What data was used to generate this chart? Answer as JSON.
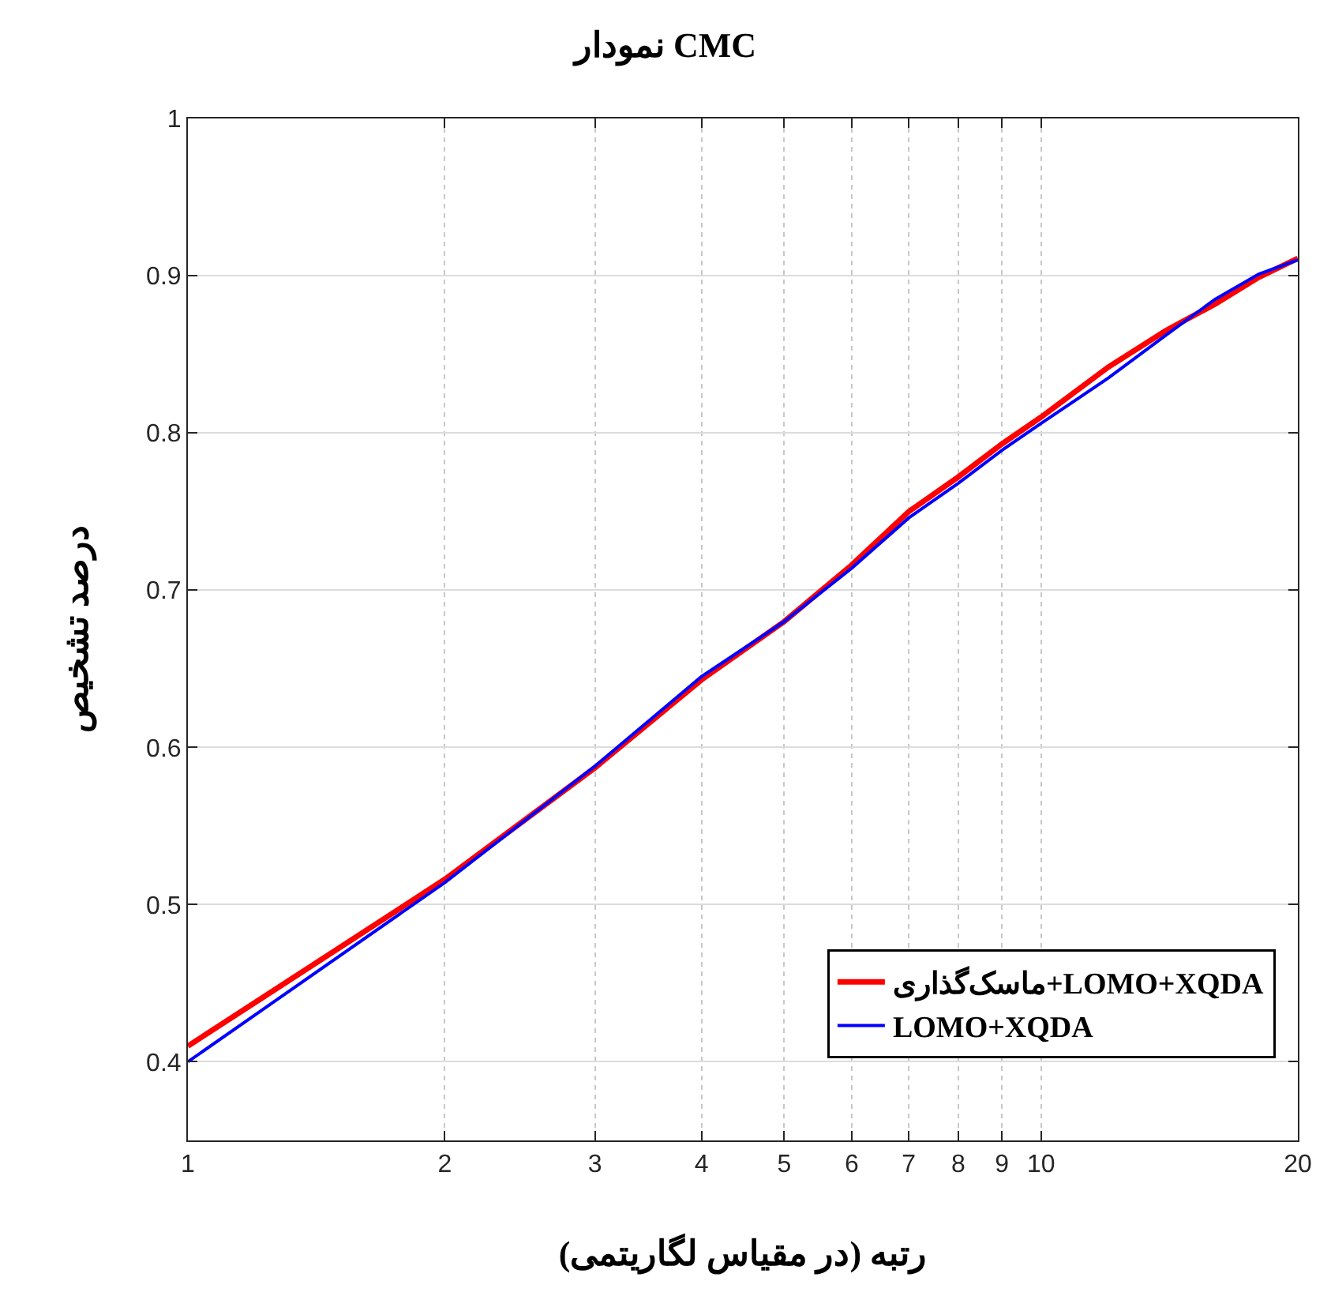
{
  "chart_data": {
    "type": "line",
    "title": "نمودار CMC",
    "xlabel": "رتبه (در مقیاس لگاریتمی)",
    "ylabel": "درصد تشخیص",
    "log": "x",
    "grid": true,
    "legend": "bottom right",
    "line_style": "solid",
    "marker": "none",
    "x": [
      1,
      2,
      3,
      4,
      5,
      6,
      7,
      8,
      9,
      10,
      12,
      14,
      16,
      18,
      20
    ],
    "series": [
      {
        "name": "ماسک‌گذاری+LOMO+XQDA",
        "color": "#ff0000",
        "values": [
          0.41,
          0.516,
          0.587,
          0.643,
          0.68,
          0.716,
          0.75,
          0.772,
          0.793,
          0.81,
          0.842,
          0.865,
          0.882,
          0.899,
          0.911
        ]
      },
      {
        "name": "LOMO+XQDA",
        "color": "#0000ff",
        "values": [
          0.4,
          0.514,
          0.588,
          0.645,
          0.68,
          0.714,
          0.746,
          0.768,
          0.789,
          0.806,
          0.835,
          0.862,
          0.885,
          0.901,
          0.91
        ]
      }
    ],
    "xlim": [
      1,
      20
    ],
    "xticks": [
      1,
      2,
      3,
      4,
      5,
      6,
      7,
      8,
      9,
      10,
      20
    ],
    "ylim": [
      0.35,
      1
    ],
    "yticks": [
      0.4,
      0.5,
      0.6,
      0.7,
      0.8,
      0.9,
      1
    ]
  }
}
